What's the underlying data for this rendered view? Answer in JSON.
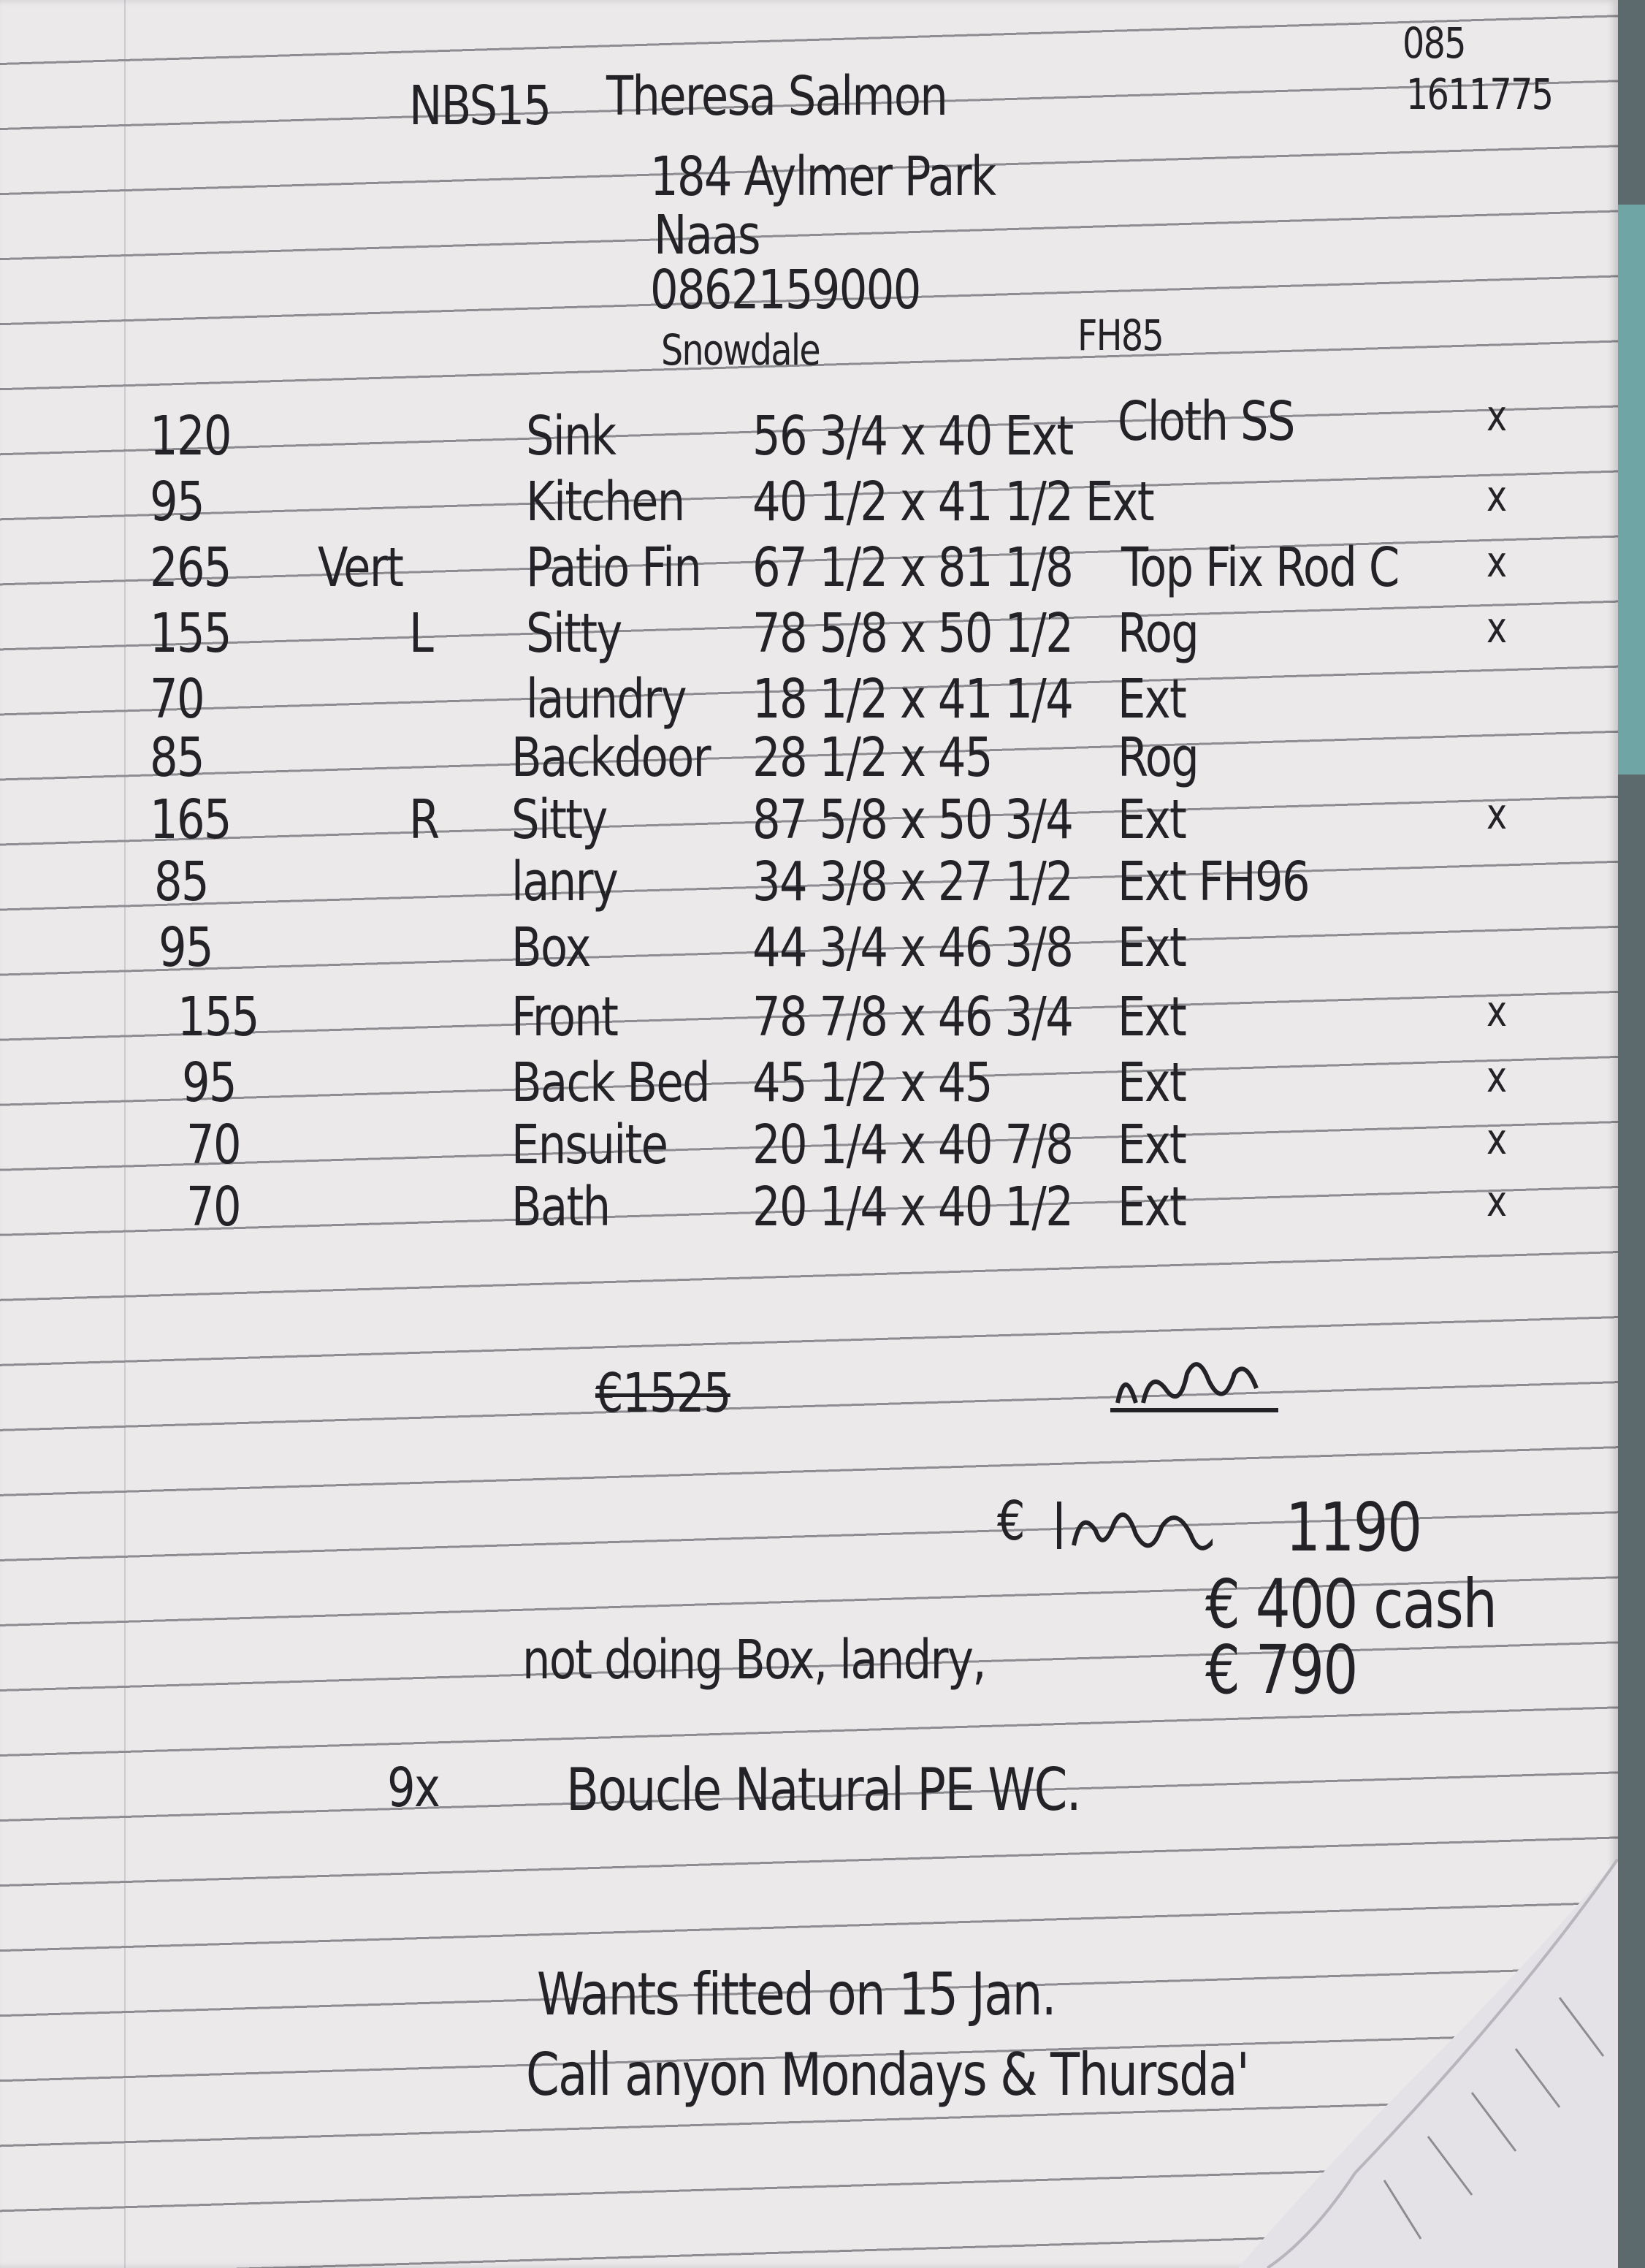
{
  "header": {
    "ref": "NBS15",
    "customer_name": "Theresa Salmon",
    "address_line1": "184 Aylmer Park",
    "address_line2": "Naas",
    "phone": "0862159000",
    "fabric": "Snowdale",
    "fabric_code": "FH85",
    "corner_top": "085",
    "corner_number": "1611775"
  },
  "rows": [
    {
      "price": "120",
      "side": "",
      "room": "Sink",
      "size": "56 3/4 x 40 Ext",
      "note": "Cloth SS",
      "tick": "x"
    },
    {
      "price": "95",
      "side": "",
      "room": "Kitchen",
      "size": "40 1/2 x 41 1/2 Ext",
      "note": "",
      "tick": "x"
    },
    {
      "price": "265",
      "side": "Vert",
      "room": "Patio Fin",
      "size": "67 1/2 x 81 1/8",
      "note": "Top Fix Rod C",
      "tick": "x"
    },
    {
      "price": "155",
      "side": "L",
      "room": "Sitty",
      "size": "78 5/8 x 50 1/2",
      "note": "Rog",
      "tick": "x"
    },
    {
      "price": "70",
      "side": "",
      "room": "laundry",
      "size": "18 1/2 x 41 1/4",
      "note": "Ext",
      "tick": ""
    },
    {
      "price": "85",
      "side": "",
      "room": "Backdoor",
      "size": "28 1/2 x 45",
      "note": "Rog",
      "tick": ""
    },
    {
      "price": "165",
      "side": "R",
      "room": "Sitty",
      "size": "87 5/8 x 50 3/4",
      "note": "Ext",
      "tick": "x"
    },
    {
      "price": "85",
      "side": "",
      "room": "lanry",
      "size": "34 3/8 x 27 1/2",
      "note": "Ext FH96",
      "tick": ""
    },
    {
      "price": "95",
      "side": "",
      "room": "Box",
      "size": "44 3/4 x 46 3/8",
      "note": "Ext",
      "tick": ""
    },
    {
      "price": "155",
      "side": "",
      "room": "Front",
      "size": "78 7/8 x 46 3/4",
      "note": "Ext",
      "tick": "x"
    },
    {
      "price": "95",
      "side": "",
      "room": "Back Bed",
      "size": "45 1/2 x 45",
      "note": "Ext",
      "tick": "x"
    },
    {
      "price": "70",
      "side": "",
      "room": "Ensuite",
      "size": "20 1/4 x 40 7/8",
      "note": "Ext",
      "tick": "x"
    },
    {
      "price": "70",
      "side": "",
      "room": "Bath",
      "size": "20 1/4 x 40 1/2",
      "note": "Ext",
      "tick": "x"
    }
  ],
  "totals": {
    "crossed_total": "€1525",
    "revised_total": "1190",
    "cash": "€ 400 cash",
    "balance": "€ 790",
    "euro": "€"
  },
  "notes": {
    "not_doing": "not doing Box, landry,",
    "qty": "9x",
    "product": "Boucle Natural PE WC.",
    "fit_date": "Wants fitted on 15 Jan.",
    "contact": "Call anyon Mondays & Thursda'"
  }
}
